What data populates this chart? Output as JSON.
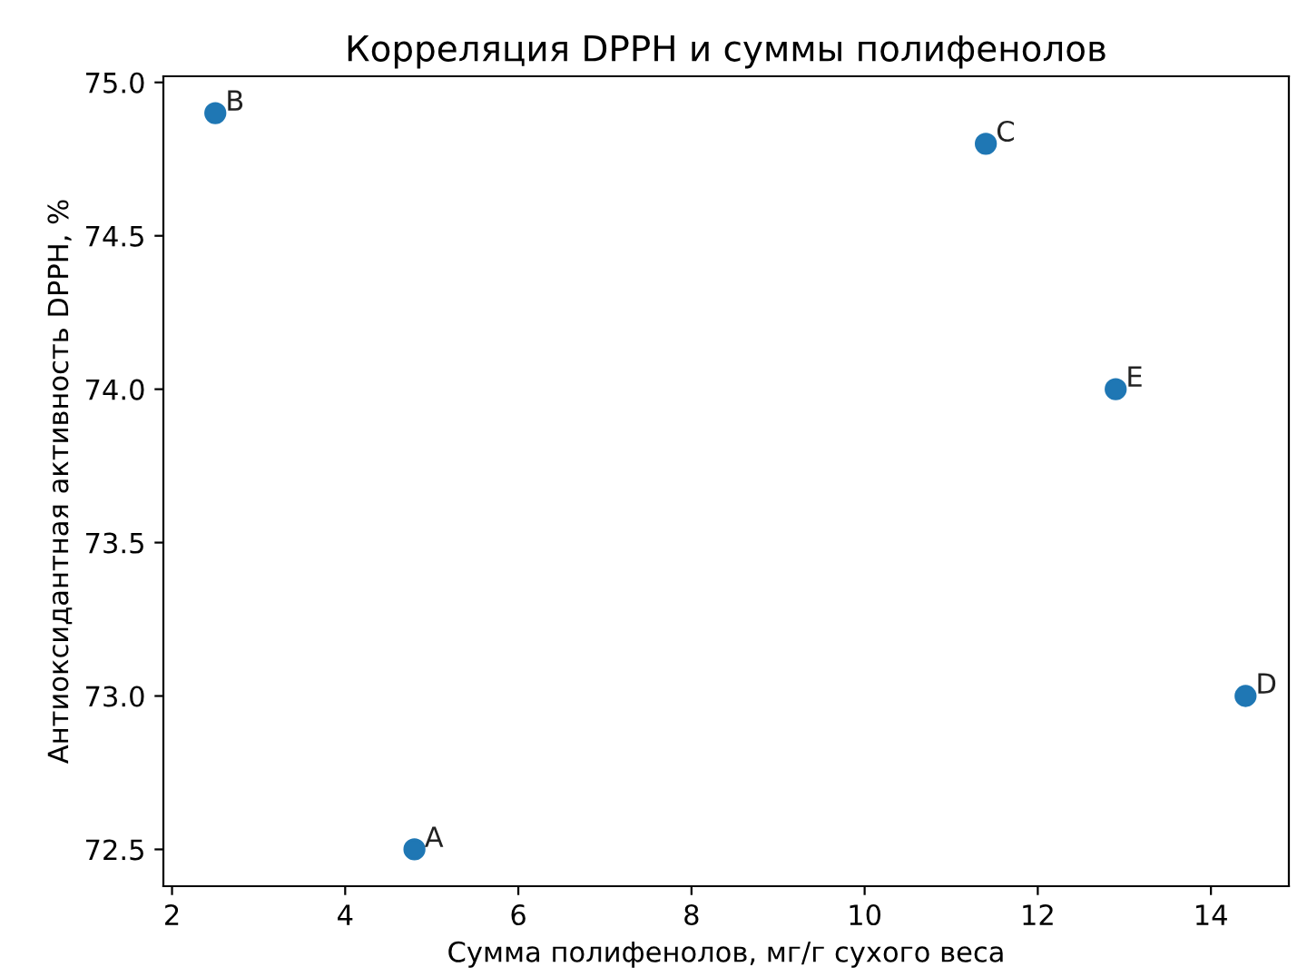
{
  "chart_data": {
    "type": "scatter",
    "title": "Корреляция DPPH и суммы полифенолов",
    "xlabel": "Сумма полифенолов, мг/г сухого веса",
    "ylabel": "Антиоксидантная активность DPPH, %",
    "x": [
      4.8,
      2.5,
      11.4,
      14.4,
      12.9
    ],
    "series": [
      {
        "color": "#1f77b4",
        "values": [
          72.5,
          74.9,
          74.8,
          73.0,
          74.0
        ]
      }
    ],
    "annotations": [
      {
        "text": "A",
        "x": 4.8,
        "y": 72.5
      },
      {
        "text": "B",
        "x": 2.5,
        "y": 74.9
      },
      {
        "text": "C",
        "x": 11.4,
        "y": 74.8
      },
      {
        "text": "D",
        "x": 14.4,
        "y": 73.0
      },
      {
        "text": "E",
        "x": 12.9,
        "y": 74.0
      }
    ],
    "xlim": [
      1.9,
      14.9
    ],
    "ylim": [
      72.38,
      75.02
    ],
    "xticks": [
      2,
      4,
      6,
      8,
      10,
      12,
      14
    ],
    "yticks": [
      {
        "value": 72.5,
        "label": "72.5"
      },
      {
        "value": 73.0,
        "label": "73.0"
      },
      {
        "value": 73.5,
        "label": "73.5"
      },
      {
        "value": 74.0,
        "label": "74.0"
      },
      {
        "value": 74.5,
        "label": "74.5"
      },
      {
        "value": 75.0,
        "label": "75.0"
      }
    ],
    "marker": "circle",
    "grid": false
  }
}
